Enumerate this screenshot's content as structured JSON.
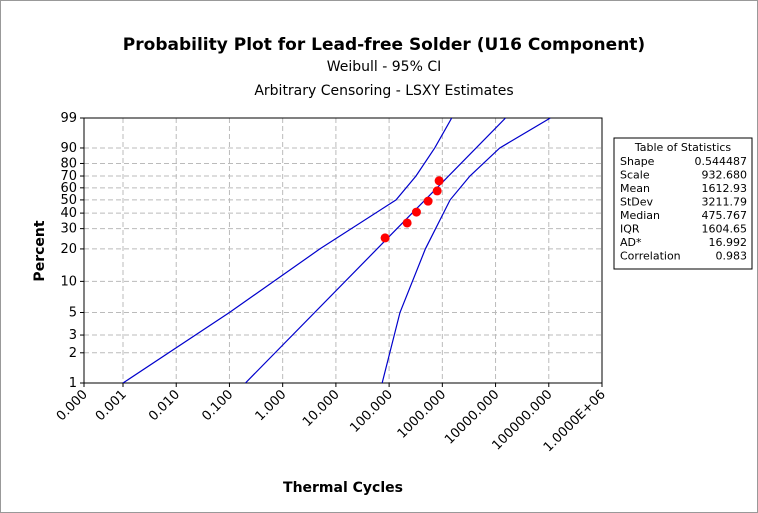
{
  "chart_data": {
    "type": "probability",
    "title": "Probability Plot for Lead-free Solder (U16 Component)",
    "subtitle": [
      "Weibull - 95% CI",
      "Arbitrary Censoring - LSXY Estimates"
    ],
    "xlabel": "Thermal Cycles",
    "ylabel": "Percent",
    "xscale": "log",
    "yscale": "weibull",
    "grid": true,
    "xlim": [
      0.000185,
      1000000
    ],
    "xticks": [
      {
        "value": 0.000185,
        "label": "0.000"
      },
      {
        "value": 0.001,
        "label": "0.001"
      },
      {
        "value": 0.01,
        "label": "0.010"
      },
      {
        "value": 0.1,
        "label": "0.100"
      },
      {
        "value": 1,
        "label": "1.000"
      },
      {
        "value": 10,
        "label": "10.000"
      },
      {
        "value": 100,
        "label": "100.000"
      },
      {
        "value": 1000,
        "label": "1000.000"
      },
      {
        "value": 10000,
        "label": "10000.000"
      },
      {
        "value": 100000,
        "label": "100000.000"
      },
      {
        "value": 1000000,
        "label": "1.0000E+06"
      }
    ],
    "ylim": [
      1,
      99
    ],
    "yticks": [
      1,
      2,
      3,
      5,
      10,
      20,
      30,
      40,
      50,
      60,
      70,
      80,
      90,
      99
    ],
    "points": {
      "color": "#ff0000",
      "x": [
        84,
        218,
        326,
        540,
        800,
        870
      ],
      "y": [
        25,
        33.4,
        40.7,
        49,
        57.4,
        66
      ]
    },
    "fit": {
      "color": "#0000cc",
      "x": [
        0.2,
        15400
      ],
      "y": [
        1,
        99
      ]
    },
    "ci_left": {
      "color": "#0000cc",
      "x": [
        0.001,
        0.1,
        5,
        135,
        320,
        720,
        1500
      ],
      "y": [
        1,
        5,
        20,
        50,
        70,
        90,
        99
      ]
    },
    "ci_right": {
      "color": "#0000cc",
      "x": [
        74,
        160,
        480,
        1400,
        3300,
        12000,
        107000
      ],
      "y": [
        1,
        5,
        20,
        50,
        70,
        90,
        99
      ]
    }
  },
  "table": {
    "title": "Table of Statistics",
    "rows": [
      [
        "Shape",
        "0.544487"
      ],
      [
        "Scale",
        "932.680"
      ],
      [
        "Mean",
        "1612.93"
      ],
      [
        "StDev",
        "3211.79"
      ],
      [
        "Median",
        "475.767"
      ],
      [
        "IQR",
        "1604.65"
      ],
      [
        "AD*",
        "16.992"
      ],
      [
        "Correlation",
        "0.983"
      ]
    ]
  }
}
